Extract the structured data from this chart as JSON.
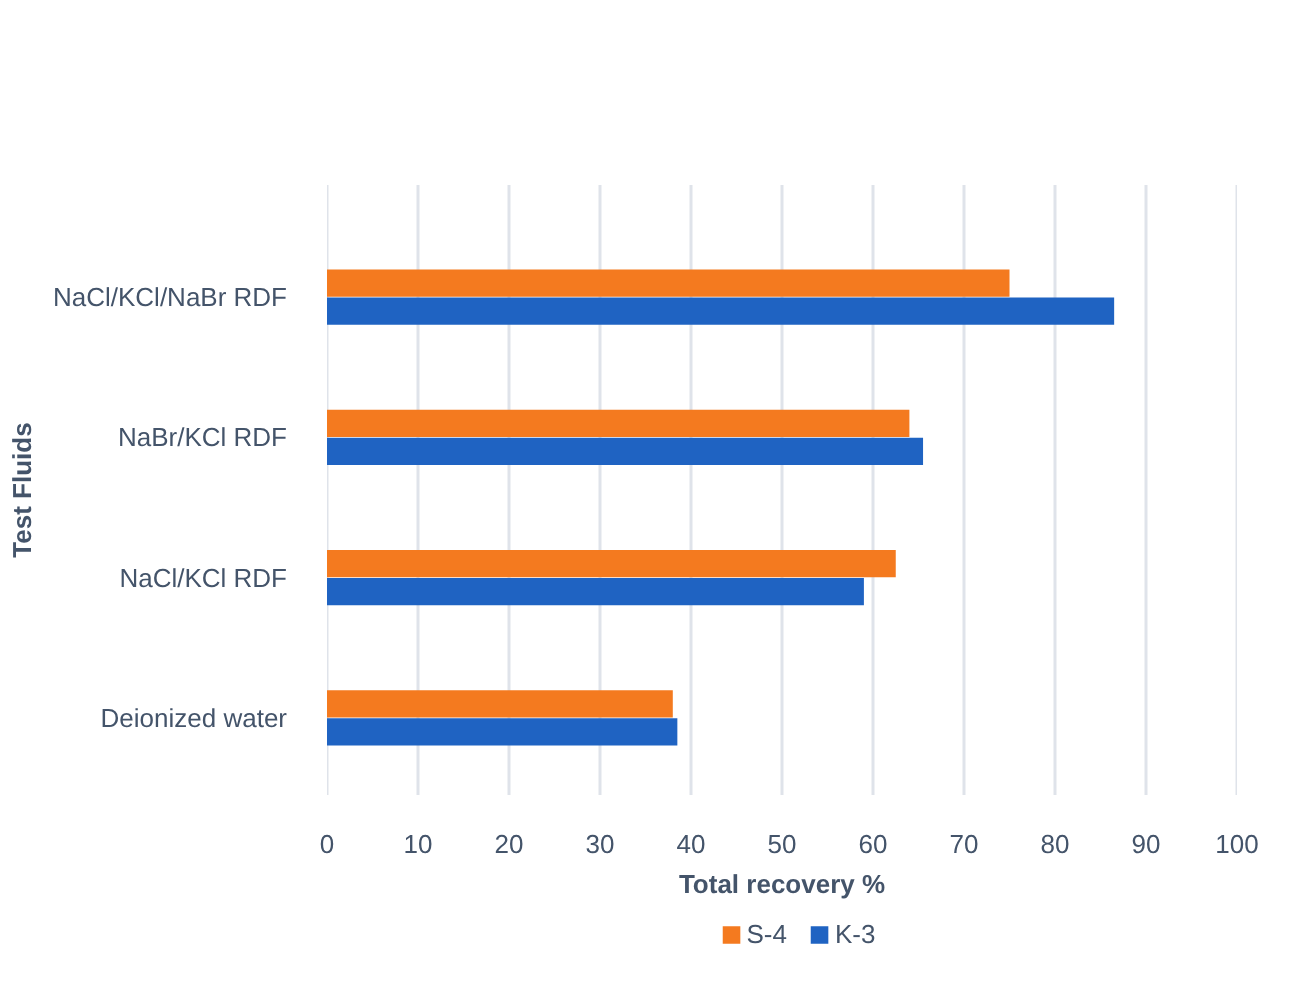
{
  "chart_data": {
    "type": "bar",
    "orientation": "horizontal",
    "categories": [
      "NaCl/KCl/NaBr RDF",
      "NaBr/KCl RDF",
      "NaCl/KCl RDF",
      "Deionized water"
    ],
    "series": [
      {
        "name": "S-4",
        "color": "#f47a1f",
        "values": [
          75,
          64,
          62.5,
          38
        ]
      },
      {
        "name": "K-3",
        "color": "#1f63c2",
        "values": [
          86.5,
          65.5,
          59,
          38.5
        ]
      }
    ],
    "xlim": [
      0,
      100
    ],
    "xticks": [
      0,
      10,
      20,
      30,
      40,
      50,
      60,
      70,
      80,
      90,
      100
    ],
    "xlabel": "Total recovery %",
    "ylabel": "Test Fluids",
    "grid": "x",
    "legend": "bottom"
  }
}
